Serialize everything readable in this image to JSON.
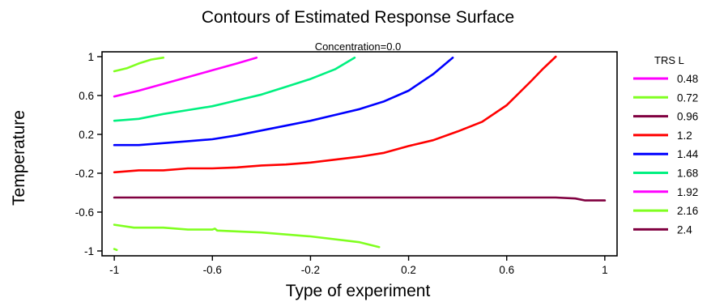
{
  "chart_data": {
    "type": "contour",
    "title": "Contours of Estimated Response Surface",
    "subtitle": "Concentration=0.0",
    "xlabel": "Type of experiment",
    "ylabel": "Temperature",
    "xlim": [
      -1.05,
      1.05
    ],
    "ylim": [
      -1.05,
      1.05
    ],
    "x_ticks": [
      -1,
      -0.6,
      -0.2,
      0.2,
      0.6,
      1
    ],
    "x_tick_labels": [
      "-1",
      "-0.6",
      "-0.2",
      "0.2",
      "0.6",
      "1"
    ],
    "y_ticks": [
      1,
      0.6,
      0.2,
      -0.2,
      -0.6,
      -1
    ],
    "y_tick_labels": [
      "1",
      "0.6",
      "0.2",
      "-0.2",
      "-0.6",
      "-1"
    ],
    "legend": {
      "title": "TRS L",
      "position": "right",
      "entries": [
        {
          "label": "0.48",
          "color": "#ff00ff"
        },
        {
          "label": "0.72",
          "color": "#80ff20"
        },
        {
          "label": "0.96",
          "color": "#800040"
        },
        {
          "label": "1.2",
          "color": "#ff0000"
        },
        {
          "label": "1.44",
          "color": "#0000ff"
        },
        {
          "label": "1.68",
          "color": "#00f080"
        },
        {
          "label": "1.92",
          "color": "#ff00ff"
        },
        {
          "label": "2.16",
          "color": "#80ff20"
        },
        {
          "label": "2.4",
          "color": "#800040"
        }
      ]
    },
    "series": [
      {
        "level": "0.72",
        "color": "#80ff20",
        "points": [
          [
            -1,
            -0.98
          ],
          [
            -0.99,
            -0.99
          ]
        ]
      },
      {
        "level": "0.72",
        "color": "#80ff20",
        "points": [
          [
            -1,
            -0.73
          ],
          [
            -0.92,
            -0.76
          ],
          [
            -0.8,
            -0.76
          ],
          [
            -0.7,
            -0.78
          ],
          [
            -0.6,
            -0.78
          ],
          [
            -0.59,
            -0.77
          ],
          [
            -0.58,
            -0.79
          ],
          [
            -0.4,
            -0.81
          ],
          [
            -0.2,
            -0.85
          ],
          [
            0,
            -0.91
          ],
          [
            0.08,
            -0.96
          ]
        ]
      },
      {
        "level": "0.96",
        "color": "#800040",
        "points": [
          [
            -1,
            -0.45
          ],
          [
            -0.5,
            -0.45
          ],
          [
            0,
            -0.45
          ],
          [
            0.6,
            -0.45
          ],
          [
            0.8,
            -0.45
          ],
          [
            0.88,
            -0.46
          ],
          [
            0.92,
            -0.48
          ],
          [
            1,
            -0.48
          ]
        ]
      },
      {
        "level": "1.2",
        "color": "#ff0000",
        "points": [
          [
            -1,
            -0.19
          ],
          [
            -0.9,
            -0.17
          ],
          [
            -0.8,
            -0.17
          ],
          [
            -0.7,
            -0.15
          ],
          [
            -0.6,
            -0.15
          ],
          [
            -0.5,
            -0.14
          ],
          [
            -0.4,
            -0.12
          ],
          [
            -0.3,
            -0.11
          ],
          [
            -0.2,
            -0.09
          ],
          [
            -0.1,
            -0.06
          ],
          [
            0,
            -0.03
          ],
          [
            0.1,
            0.01
          ],
          [
            0.2,
            0.08
          ],
          [
            0.3,
            0.14
          ],
          [
            0.4,
            0.23
          ],
          [
            0.5,
            0.33
          ],
          [
            0.6,
            0.5
          ],
          [
            0.7,
            0.75
          ],
          [
            0.75,
            0.88
          ],
          [
            0.8,
            1
          ]
        ]
      },
      {
        "level": "1.44",
        "color": "#0000ff",
        "points": [
          [
            -1,
            0.09
          ],
          [
            -0.9,
            0.09
          ],
          [
            -0.8,
            0.11
          ],
          [
            -0.7,
            0.13
          ],
          [
            -0.6,
            0.15
          ],
          [
            -0.5,
            0.19
          ],
          [
            -0.4,
            0.24
          ],
          [
            -0.3,
            0.29
          ],
          [
            -0.2,
            0.34
          ],
          [
            -0.1,
            0.4
          ],
          [
            0,
            0.46
          ],
          [
            0.1,
            0.54
          ],
          [
            0.2,
            0.65
          ],
          [
            0.3,
            0.82
          ],
          [
            0.38,
            0.99
          ]
        ]
      },
      {
        "level": "1.68",
        "color": "#00f080",
        "points": [
          [
            -1,
            0.34
          ],
          [
            -0.9,
            0.36
          ],
          [
            -0.8,
            0.41
          ],
          [
            -0.7,
            0.45
          ],
          [
            -0.6,
            0.49
          ],
          [
            -0.5,
            0.55
          ],
          [
            -0.4,
            0.61
          ],
          [
            -0.3,
            0.69
          ],
          [
            -0.2,
            0.77
          ],
          [
            -0.1,
            0.87
          ],
          [
            -0.02,
            0.99
          ]
        ]
      },
      {
        "level": "1.92",
        "color": "#ff00ff",
        "points": [
          [
            -1,
            0.59
          ],
          [
            -0.9,
            0.65
          ],
          [
            -0.8,
            0.72
          ],
          [
            -0.7,
            0.79
          ],
          [
            -0.6,
            0.86
          ],
          [
            -0.5,
            0.93
          ],
          [
            -0.42,
            0.99
          ]
        ]
      },
      {
        "level": "2.16",
        "color": "#80ff20",
        "points": [
          [
            -1,
            0.85
          ],
          [
            -0.95,
            0.88
          ],
          [
            -0.9,
            0.93
          ],
          [
            -0.85,
            0.97
          ],
          [
            -0.8,
            0.99
          ]
        ]
      }
    ]
  }
}
